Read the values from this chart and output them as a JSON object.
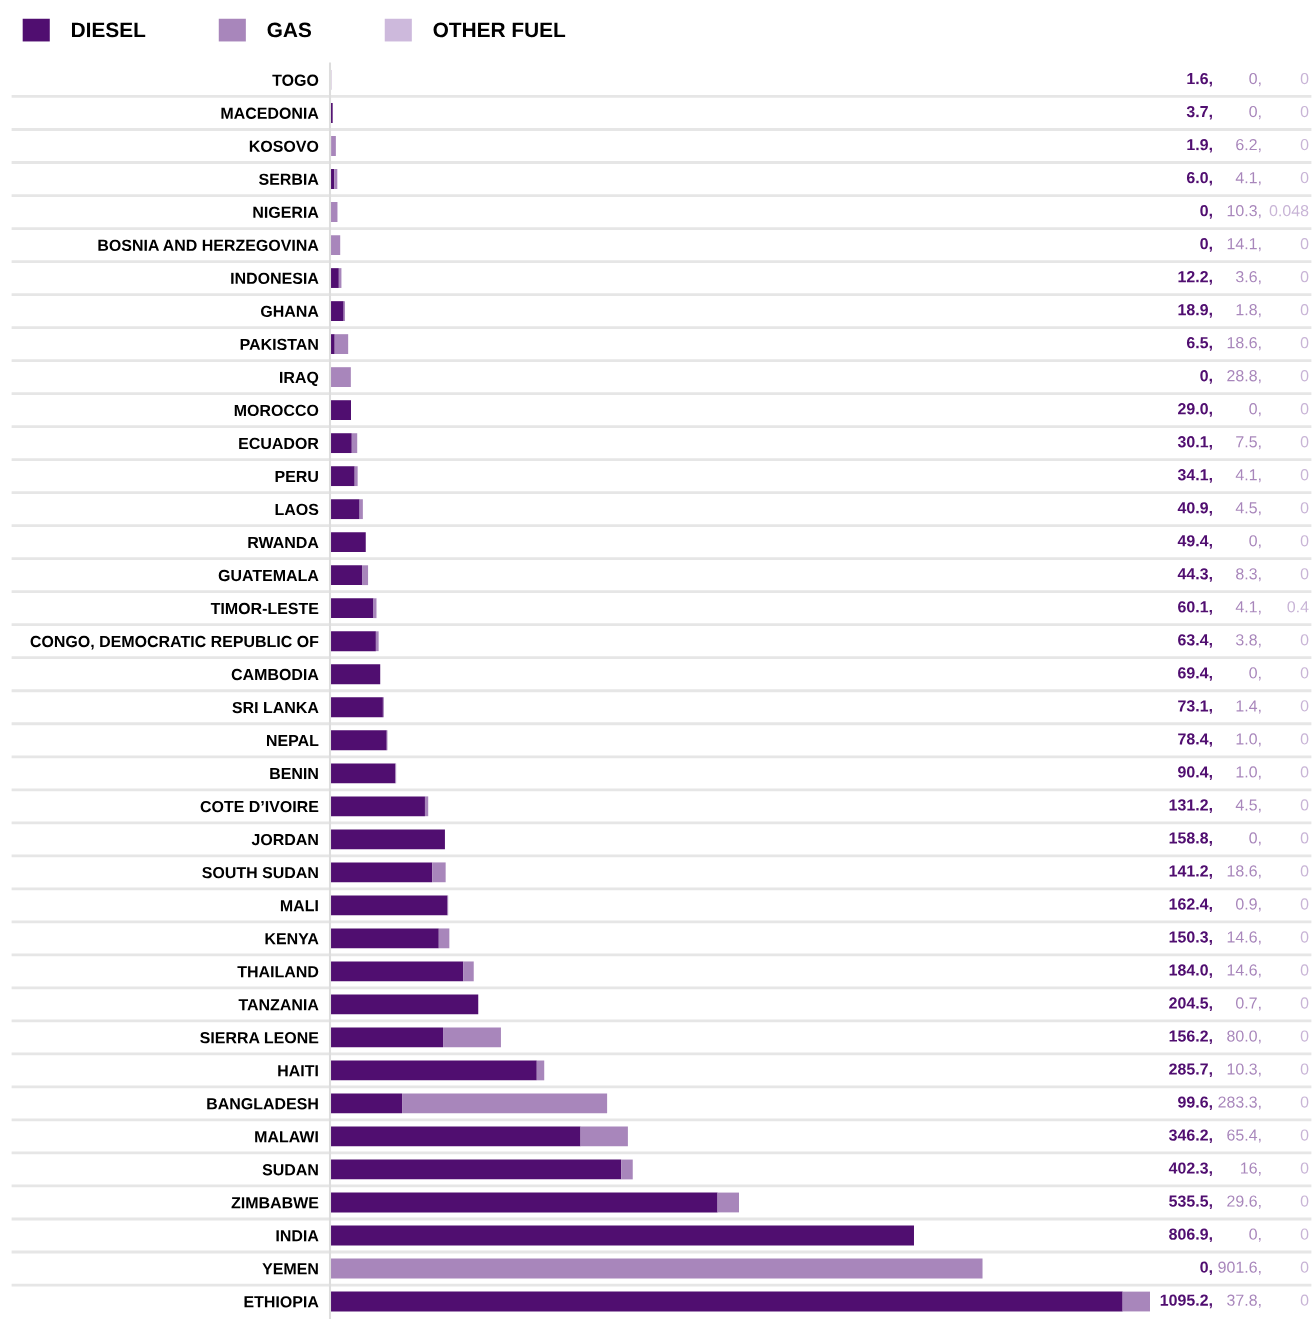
{
  "chart_data": {
    "type": "bar",
    "orientation": "horizontal",
    "stacked": true,
    "legend": "top left",
    "grid": "y",
    "tick_labels": "y",
    "categories": [
      "TOGO",
      "MACEDONIA",
      "KOSOVO",
      "SERBIA",
      "NIGERIA",
      "BOSNIA AND HERZEGOVINA",
      "INDONESIA",
      "GHANA",
      "PAKISTAN",
      "IRAQ",
      "MOROCCO",
      "ECUADOR",
      "PERU",
      "LAOS",
      "RWANDA",
      "GUATEMALA",
      "TIMOR-LESTE",
      "CONGO, DEMOCRATIC REPUBLIC OF",
      "CAMBODIA",
      "SRI LANKA",
      "NEPAL",
      "BENIN",
      "COTE D’IVOIRE",
      "JORDAN",
      "SOUTH SUDAN",
      "MALI",
      "KENYA",
      "THAILAND",
      "TANZANIA",
      "SIERRA LEONE",
      "HAITI",
      "BANGLADESH",
      "MALAWI",
      "SUDAN",
      "ZIMBABWE",
      "INDIA",
      "YEMEN",
      "ETHIOPIA"
    ],
    "series": [
      {
        "name": "DIESEL",
        "color": "#500e70",
        "values": [
          1.6,
          3.7,
          1.9,
          6.0,
          0,
          0,
          12.2,
          18.9,
          6.5,
          0,
          29.0,
          30.1,
          34.1,
          40.9,
          49.4,
          44.3,
          60.1,
          63.4,
          69.4,
          73.1,
          78.4,
          90.4,
          131.2,
          158.8,
          141.2,
          162.4,
          150.3,
          184.0,
          204.5,
          156.2,
          285.7,
          99.6,
          346.2,
          402.3,
          535.5,
          806.9,
          0,
          1095.2
        ],
        "value_labels": [
          "1.6,",
          "3.7,",
          "1.9,",
          "6.0,",
          "0,",
          "0,",
          "12.2,",
          "18.9,",
          "6.5,",
          "0,",
          "29.0,",
          "30.1,",
          "34.1,",
          "40.9,",
          "49.4,",
          "44.3,",
          "60.1,",
          "63.4,",
          "69.4,",
          "73.1,",
          "78.4,",
          "90.4,",
          "131.2,",
          "158.8,",
          "141.2,",
          "162.4,",
          "150.3,",
          "184.0,",
          "204.5,",
          "156.2,",
          "285.7,",
          "99.6,",
          "346.2,",
          "402.3,",
          "535.5,",
          "806.9,",
          "0,",
          "1095.2,"
        ]
      },
      {
        "name": "GAS",
        "color": "#a886bb",
        "values": [
          0,
          0,
          6.2,
          4.1,
          10.3,
          14.1,
          3.6,
          1.8,
          18.6,
          28.8,
          0,
          7.5,
          4.1,
          4.5,
          0,
          8.3,
          4.1,
          3.8,
          0,
          1.4,
          1.0,
          1.0,
          4.5,
          0,
          18.6,
          0.9,
          14.6,
          14.6,
          0.7,
          80.0,
          10.3,
          283.3,
          65.4,
          16,
          29.6,
          0,
          901.6,
          37.8
        ],
        "value_labels": [
          "0,",
          "0,",
          "6.2,",
          "4.1,",
          "10.3,",
          "14.1,",
          "3.6,",
          "1.8,",
          "18.6,",
          "28.8,",
          "0,",
          "7.5,",
          "4.1,",
          "4.5,",
          "0,",
          "8.3,",
          "4.1,",
          "3.8,",
          "0,",
          "1.4,",
          "1.0,",
          "1.0,",
          "4.5,",
          "0,",
          "18.6,",
          "0.9,",
          "14.6,",
          "14.6,",
          "0.7,",
          "80.0,",
          "10.3,",
          "283.3,",
          "65.4,",
          "16,",
          "29.6,",
          "0,",
          "901.6,",
          "37.8,"
        ]
      },
      {
        "name": "OTHER FUEL",
        "color": "#cdb9dc",
        "values": [
          0,
          0,
          0,
          0,
          0.048,
          0,
          0,
          0,
          0,
          0,
          0,
          0,
          0,
          0,
          0,
          0,
          0.4,
          0,
          0,
          0,
          0,
          0,
          0,
          0,
          0,
          0,
          0,
          0,
          0,
          0,
          0,
          0,
          0,
          0,
          0,
          0,
          0,
          0
        ],
        "value_labels": [
          "0",
          "0",
          "0",
          "0",
          "0.048",
          "0",
          "0",
          "0",
          "0",
          "0",
          "0",
          "0",
          "0",
          "0",
          "0",
          "0",
          "0.4",
          "0",
          "0",
          "0",
          "0",
          "0",
          "0",
          "0",
          "0",
          "0",
          "0",
          "0",
          "0",
          "0",
          "0",
          "0",
          "0",
          "0",
          "0",
          "0",
          "0",
          "0"
        ]
      }
    ]
  }
}
